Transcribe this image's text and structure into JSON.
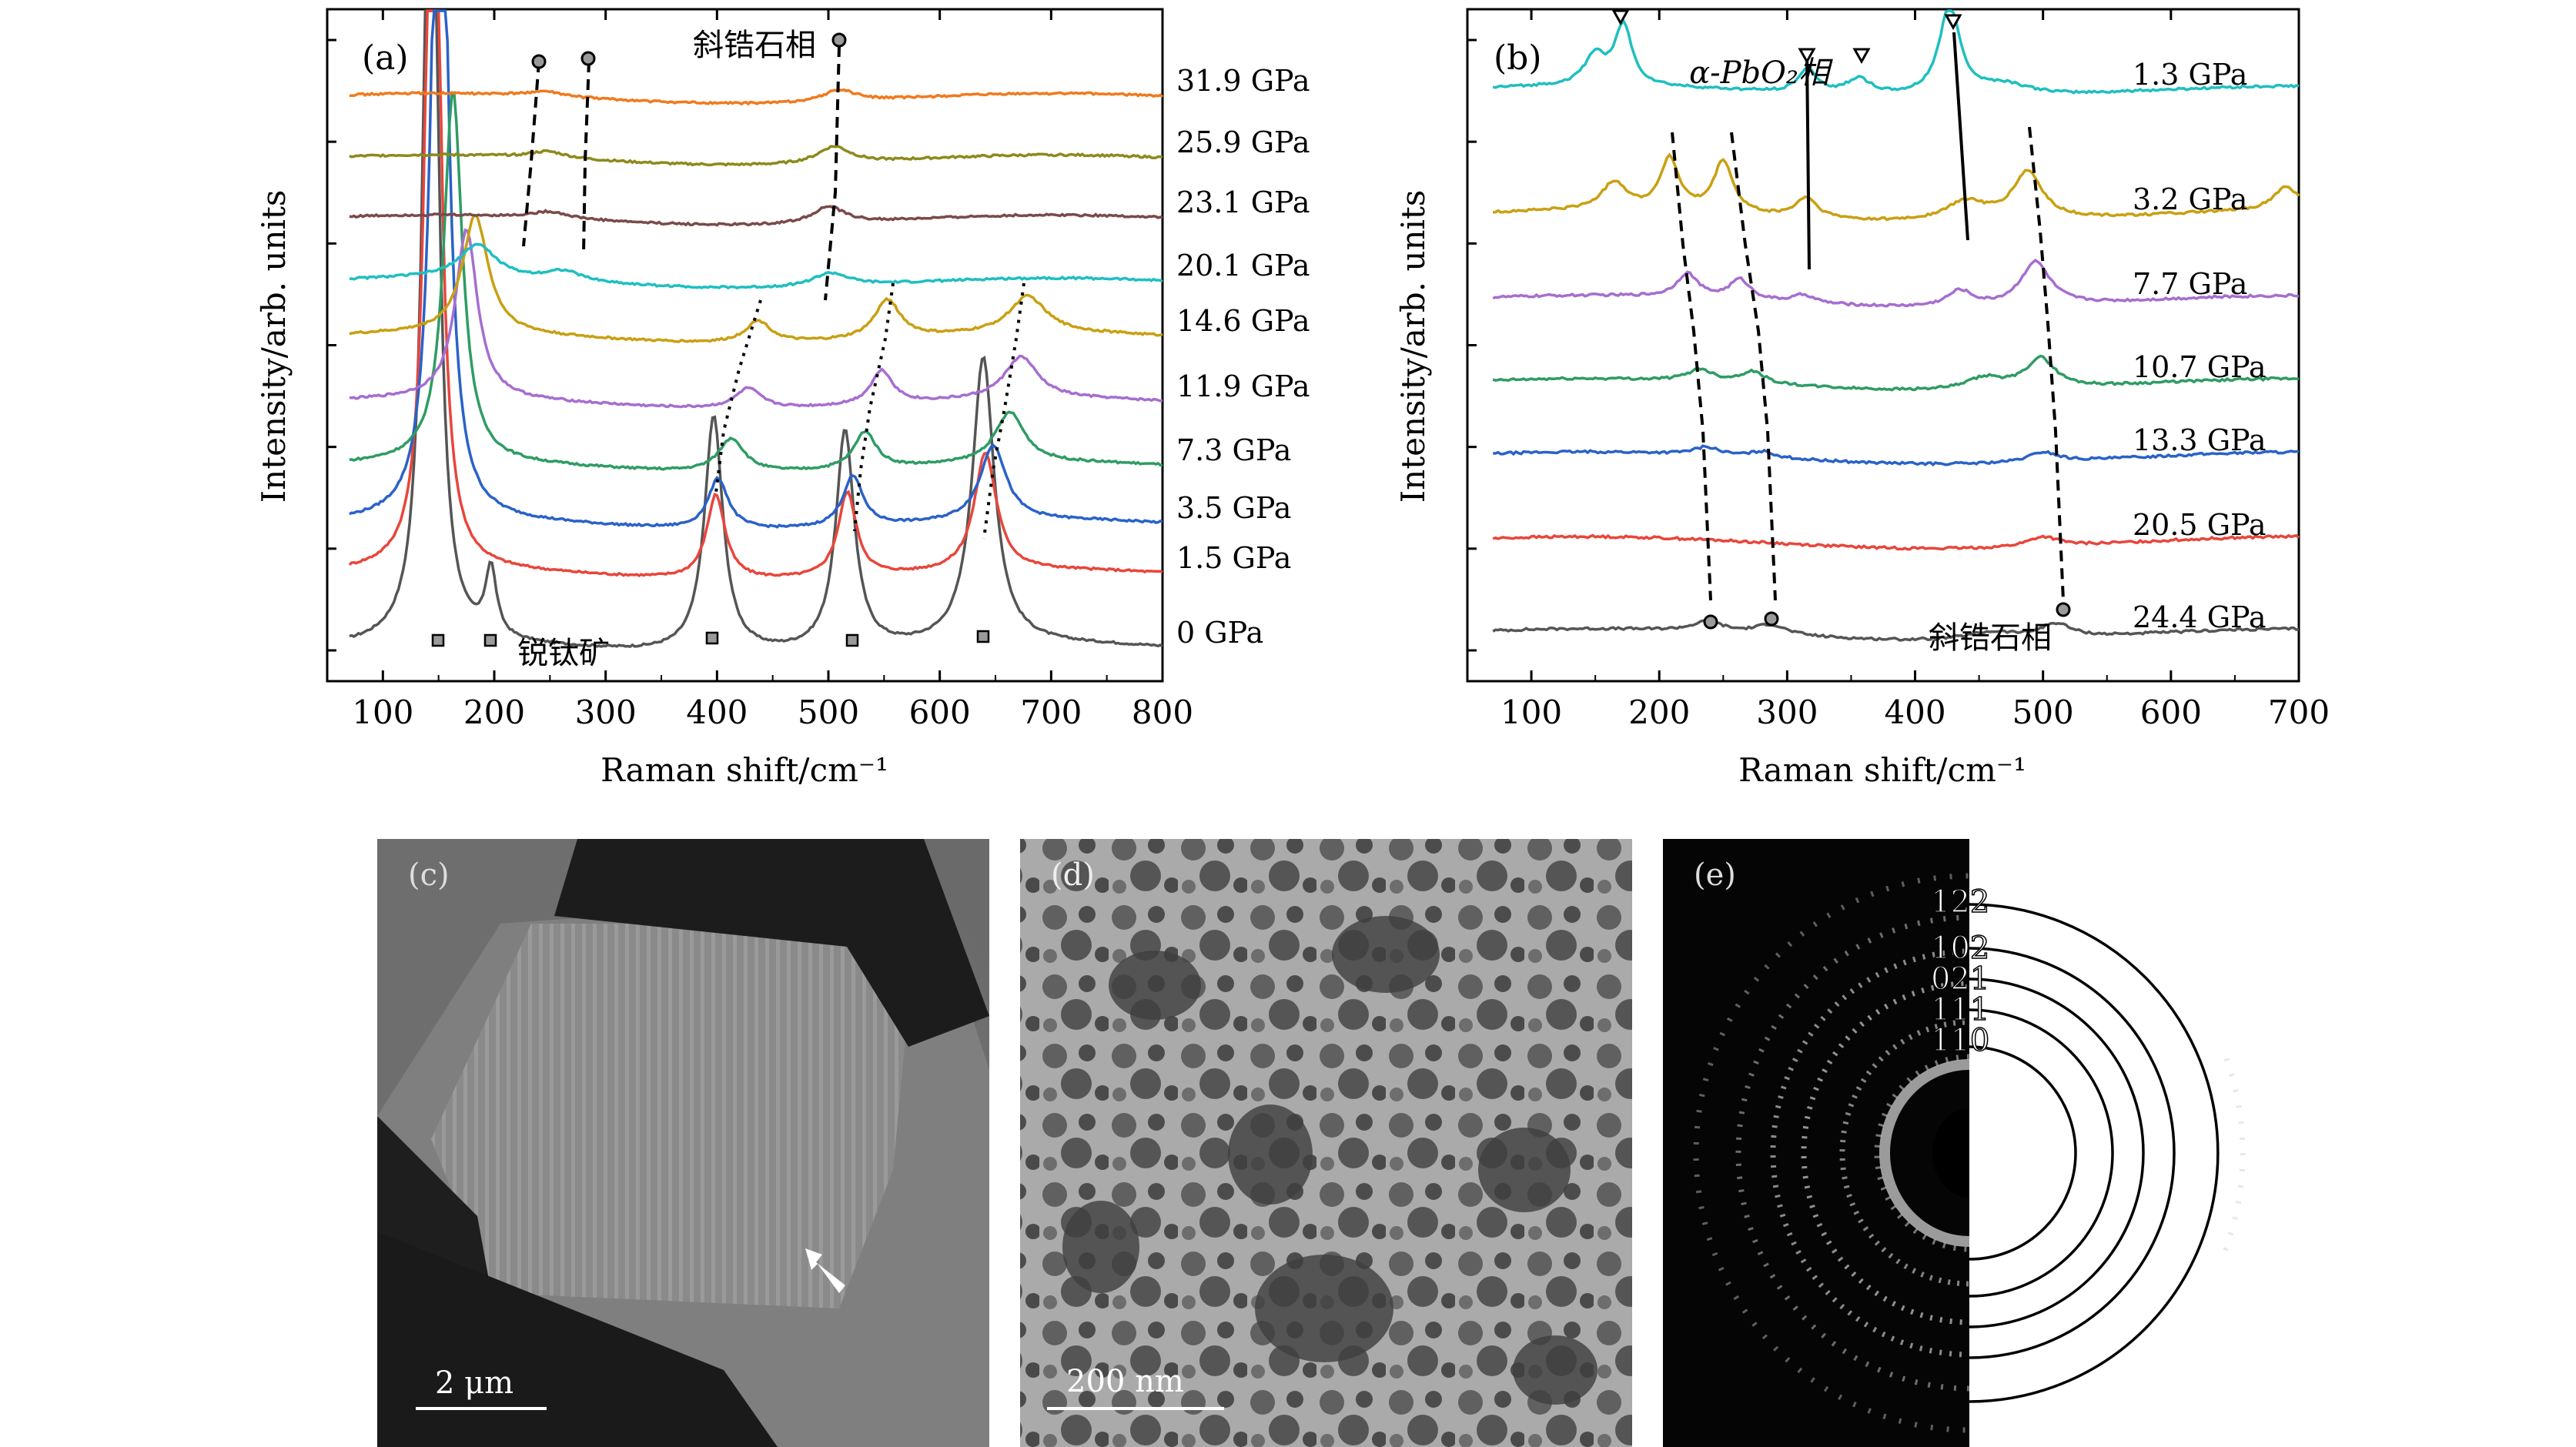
{
  "chart_data": [
    {
      "type": "line",
      "panel_label": "(a)",
      "xlabel": "Raman shift/cm⁻¹",
      "ylabel": "Intensity/arb. units",
      "xlim": [
        50,
        800
      ],
      "xticks": [
        100,
        200,
        300,
        400,
        500,
        600,
        700,
        800
      ],
      "series": [
        {
          "name": "0 GPa",
          "color": "#555555",
          "peaks": [
            [
              143,
              60,
              7
            ],
            [
              197,
              4,
              6
            ],
            [
              397,
              14,
              10
            ],
            [
              515,
              13,
              10
            ],
            [
              639,
              17,
              12
            ]
          ]
        },
        {
          "name": "1.5 GPa",
          "color": "#e8463c",
          "peaks": [
            [
              145,
              55,
              7
            ],
            [
              399,
              5,
              10
            ],
            [
              517,
              5,
              10
            ],
            [
              641,
              7,
              12
            ]
          ]
        },
        {
          "name": "3.5 GPa",
          "color": "#2a62c8",
          "peaks": [
            [
              151,
              50,
              8
            ],
            [
              401,
              3,
              11
            ],
            [
              522,
              3,
              11
            ],
            [
              648,
              4.5,
              14
            ]
          ]
        },
        {
          "name": "7.3 GPa",
          "color": "#2e9c64",
          "peaks": [
            [
              163,
              22,
              10
            ],
            [
              413,
              2,
              14
            ],
            [
              533,
              2.2,
              12
            ],
            [
              663,
              3,
              16
            ]
          ]
        },
        {
          "name": "11.9 GPa",
          "color": "#a66ed0",
          "peaks": [
            [
              175,
              10,
              12
            ],
            [
              428,
              1.2,
              14
            ],
            [
              548,
              2,
              12
            ],
            [
              673,
              2.5,
              18
            ]
          ]
        },
        {
          "name": "14.6 GPa",
          "color": "#c9a012",
          "peaks": [
            [
              183,
              7,
              14
            ],
            [
              437,
              1.3,
              14
            ],
            [
              553,
              2.3,
              14
            ],
            [
              679,
              2.2,
              20
            ]
          ]
        },
        {
          "name": "20.1 GPa",
          "color": "#1fbfc0",
          "peaks": [
            [
              185,
              2,
              20
            ],
            [
              262,
              0.6,
              20
            ],
            [
              502,
              0.8,
              20
            ]
          ]
        },
        {
          "name": "23.1 GPa",
          "color": "#7a4a4a",
          "peaks": [
            [
              250,
              0.4,
              20
            ],
            [
              500,
              1.0,
              18
            ]
          ]
        },
        {
          "name": "25.9 GPa",
          "color": "#8d8a1c",
          "peaks": [
            [
              248,
              0.4,
              20
            ],
            [
              505,
              1.0,
              18
            ]
          ]
        },
        {
          "name": "31.9 GPa",
          "color": "#f07a1e",
          "peaks": [
            [
              245,
              0.3,
              20
            ],
            [
              510,
              0.7,
              18
            ]
          ]
        }
      ],
      "annotations": [
        "斜锆石相",
        "锐钛矿"
      ]
    },
    {
      "type": "line",
      "panel_label": "(b)",
      "xlabel": "Raman shift/cm⁻¹",
      "ylabel": "Intensity/arb. units",
      "xlim": [
        50,
        700
      ],
      "xticks": [
        100,
        200,
        300,
        400,
        500,
        600,
        700
      ],
      "series": [
        {
          "name": "24.4 GPa",
          "color": "#555555",
          "peaks": [
            [
              238,
              0.5,
              15
            ],
            [
              287,
              0.5,
              15
            ],
            [
              460,
              0.4,
              25
            ],
            [
              510,
              0.7,
              15
            ]
          ]
        },
        {
          "name": "20.5 GPa",
          "color": "#e8463c",
          "peaks": [
            [
              500,
              0.5,
              15
            ]
          ]
        },
        {
          "name": "13.3 GPa",
          "color": "#2a62c8",
          "peaks": [
            [
              237,
              0.4,
              12
            ],
            [
              281,
              0.3,
              12
            ],
            [
              500,
              0.5,
              14
            ]
          ]
        },
        {
          "name": "10.7 GPa",
          "color": "#2e9c64",
          "peaks": [
            [
              232,
              0.6,
              12
            ],
            [
              273,
              0.6,
              12
            ],
            [
              455,
              0.6,
              18
            ],
            [
              498,
              1.5,
              14
            ]
          ]
        },
        {
          "name": "7.7 GPa",
          "color": "#a66ed0",
          "peaks": [
            [
              222,
              1.2,
              10
            ],
            [
              263,
              1.0,
              10
            ],
            [
              313,
              0.4,
              10
            ],
            [
              435,
              0.8,
              12
            ],
            [
              494,
              2.2,
              14
            ]
          ]
        },
        {
          "name": "3.2 GPa",
          "color": "#c9a012",
          "peaks": [
            [
              165,
              1.4,
              12
            ],
            [
              208,
              2.6,
              9
            ],
            [
              250,
              2.6,
              9
            ],
            [
              315,
              1.0,
              10
            ],
            [
              440,
              1.0,
              20
            ],
            [
              488,
              2.4,
              14
            ],
            [
              690,
              1.2,
              12
            ]
          ]
        },
        {
          "name": "1.3 GPa",
          "color": "#1fbfc0",
          "peaks": [
            [
              150,
              1.5,
              10
            ],
            [
              172,
              3.0,
              8
            ],
            [
              316,
              1.2,
              9
            ],
            [
              356,
              0.8,
              12
            ],
            [
              427,
              4.5,
              10
            ],
            [
              470,
              0.6,
              25
            ]
          ]
        }
      ],
      "annotations": [
        "α-PbO₂相",
        "斜锆石相"
      ]
    }
  ],
  "panels": {
    "c": {
      "label": "(c)",
      "scalebar": "2 μm"
    },
    "d": {
      "label": "(d)",
      "scalebar": "200 nm"
    },
    "e": {
      "label": "(e)",
      "rings": [
        "122",
        "102",
        "021",
        "111",
        "110"
      ]
    }
  }
}
